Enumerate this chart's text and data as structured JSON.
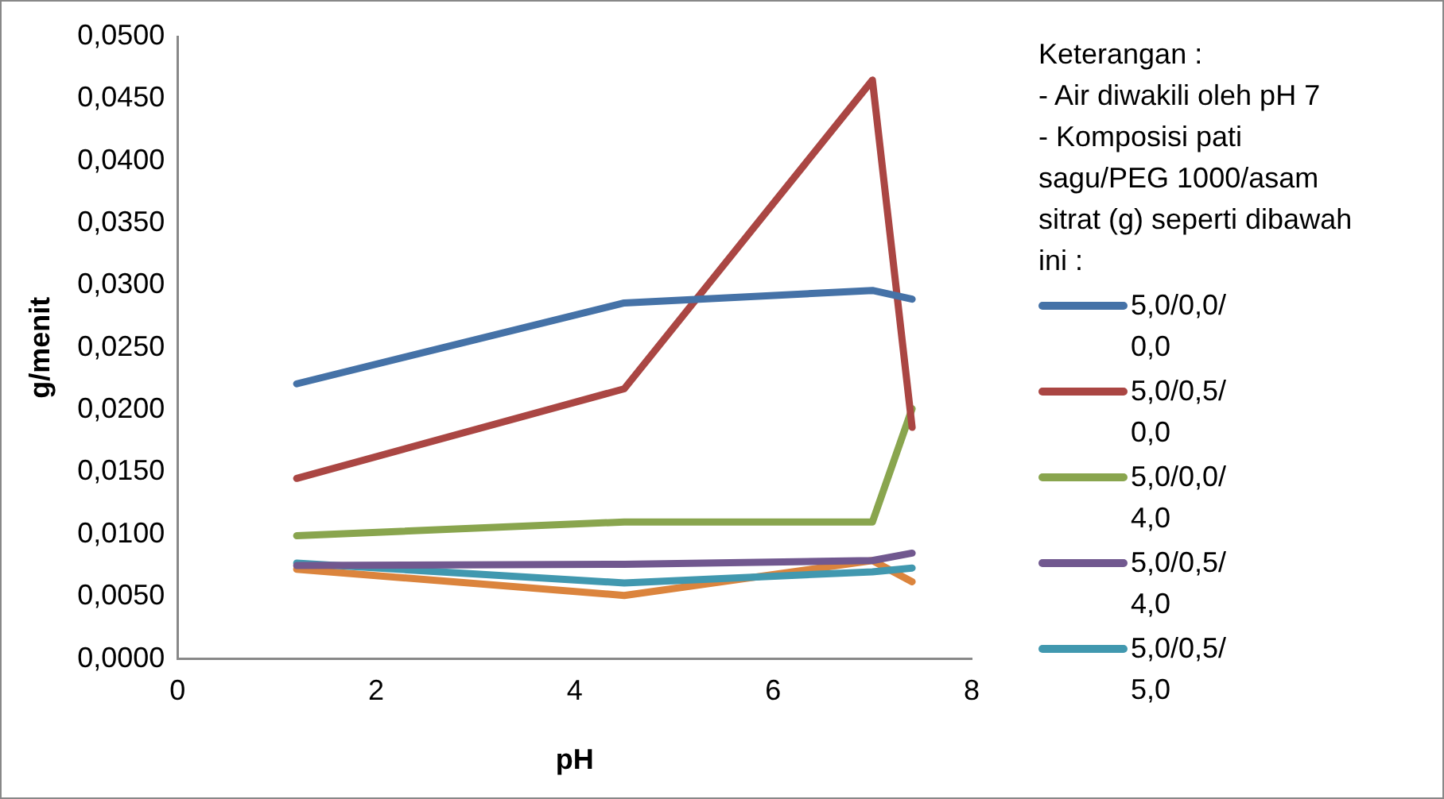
{
  "chart_data": {
    "type": "line",
    "xlabel": "pH",
    "ylabel": "g/menit",
    "x": [
      1.2,
      4.5,
      7,
      7.4
    ],
    "xlim": [
      0,
      8
    ],
    "xticks": [
      0,
      2,
      4,
      6,
      8
    ],
    "ylim": [
      0,
      0.05
    ],
    "yticks": [
      {
        "value": 0,
        "label": "0,0000"
      },
      {
        "value": 0.005,
        "label": "0,0050"
      },
      {
        "value": 0.01,
        "label": "0,0100"
      },
      {
        "value": 0.015,
        "label": "0,0150"
      },
      {
        "value": 0.02,
        "label": "0,0200"
      },
      {
        "value": 0.025,
        "label": "0,0250"
      },
      {
        "value": 0.03,
        "label": "0,0300"
      },
      {
        "value": 0.035,
        "label": "0,0350"
      },
      {
        "value": 0.04,
        "label": "0,0400"
      },
      {
        "value": 0.045,
        "label": "0,0450"
      },
      {
        "value": 0.05,
        "label": "0,0500"
      }
    ],
    "grid": false,
    "legend": "right",
    "marker": "none",
    "line_style": "solid",
    "legend_title": "Keterangan  :",
    "annotations": [
      "- Air diwakili oleh pH 7",
      "- Komposisi pati sagu/PEG 1000/asam sitrat (g) seperti dibawah ini :"
    ],
    "series": [
      {
        "name": "5,0/0,0/ 0,0",
        "color": "#4572a7",
        "values": [
          0.0221,
          0.0286,
          0.0296,
          0.0289
        ]
      },
      {
        "name": "5,0/0,5/ 0,0",
        "color": "#aa4643",
        "values": [
          0.0145,
          0.0217,
          0.0465,
          0.0186
        ]
      },
      {
        "name": "5,0/0,0/ 4,0",
        "color": "#89a54e",
        "values": [
          0.0099,
          0.011,
          0.011,
          0.0201
        ]
      },
      {
        "name": "5,0/0,5/ 4,0",
        "color": "#71588f",
        "values": [
          0.0075,
          0.0076,
          0.0079,
          0.0085
        ]
      },
      {
        "name": "5,0/0,5/ 5,0",
        "color": "#4198af",
        "values": [
          0.0077,
          0.0061,
          0.007,
          0.0073
        ]
      },
      {
        "color": "#db843d",
        "values": [
          0.0072,
          0.0051,
          0.0079,
          0.0062
        ]
      }
    ]
  }
}
